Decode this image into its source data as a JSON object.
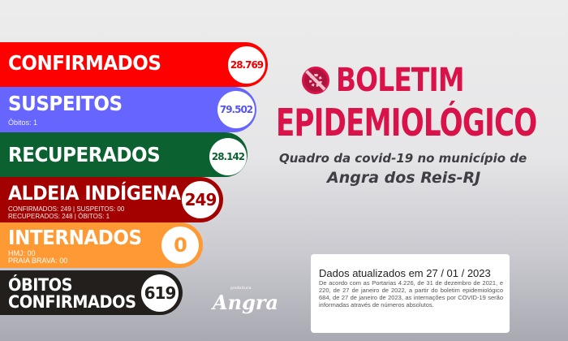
{
  "header": {
    "title_line1": "BOLETIM",
    "title_line2": "EPIDEMIOLÓGICO",
    "subtitle": "Quadro da covid-19 no município de",
    "city": "Angra dos Reis-RJ",
    "icon": "virus-blocked-icon"
  },
  "stats": {
    "confirmados": {
      "label": "CONFIRMADOS",
      "value": "28.769",
      "color": "#ff0000"
    },
    "suspeitos": {
      "label": "SUSPEITOS",
      "note": "Óbitos: 1",
      "value": "79.502",
      "color": "#6666ff"
    },
    "recuperados": {
      "label": "RECUPERADOS",
      "value": "28.142",
      "color": "#0b6130"
    },
    "aldeia": {
      "label": "ALDEIA INDÍGENA",
      "line1": "CONFIRMADOS: 249 | SUSPEITOS: 00",
      "line2": "RECUPERADOS: 248 | ÓBITOS: 1",
      "value": "249",
      "color": "#a30000"
    },
    "internados": {
      "label": "INTERNADOS",
      "line1": "HMJ: 00",
      "line2": "PRAIA BRAVA: 00",
      "value": "0",
      "color": "#ff9933"
    },
    "obitos": {
      "label_line1": "ÓBITOS",
      "label_line2": "CONFIRMADOS",
      "value": "619",
      "color": "#231f1c"
    }
  },
  "logo": {
    "text": "Angra",
    "tagline": "prefeitura"
  },
  "update_box": {
    "heading": "Dados atualizados em  27 / 01 / 2023",
    "body": "De acordo com as Portarias 4.226, de 31 de dezembro de 2021, e 220, de 27 de janeiro de 2022, a partir do boletim epidemiológico 684, de 27 de janeiro de 2023, as internações por COVID-19 serão informadas através de números absolutos."
  }
}
